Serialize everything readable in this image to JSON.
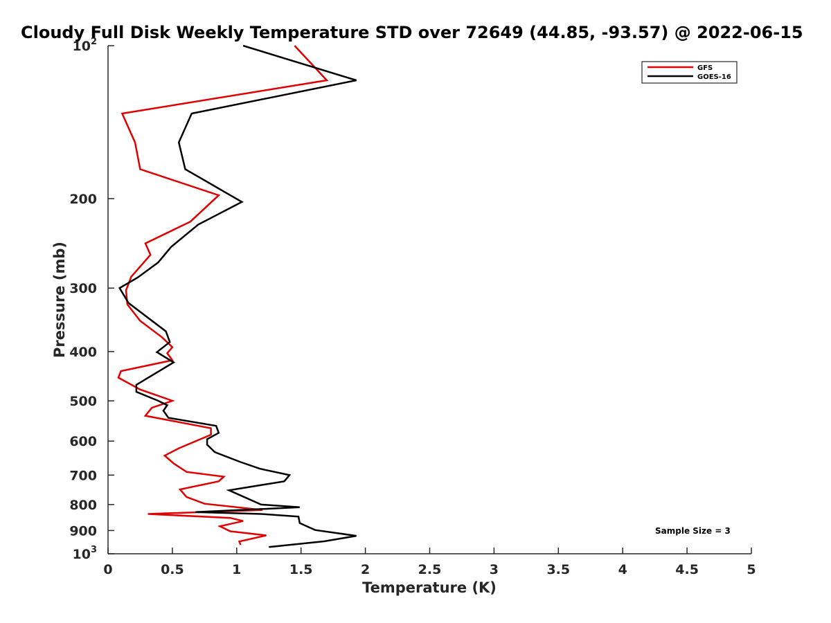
{
  "chart_data": {
    "type": "line",
    "title": "Cloudy Full Disk Weekly Temperature STD over 72649 (44.85, -93.57) @ 2022-06-15",
    "xlabel": "Temperature (K)",
    "ylabel": "Pressure (mb)",
    "xlim": [
      0,
      5
    ],
    "ylim": [
      100,
      1000
    ],
    "y_scale": "log",
    "y_reversed": true,
    "xticks": [
      0,
      0.5,
      1,
      1.5,
      2,
      2.5,
      3,
      3.5,
      4,
      4.5,
      5
    ],
    "xtick_labels": [
      "0",
      "0.5",
      "1",
      "1.5",
      "2",
      "2.5",
      "3",
      "3.5",
      "4",
      "4.5",
      "5"
    ],
    "yticks": [
      {
        "value": 100,
        "label": "10",
        "exp": "2"
      },
      {
        "value": 200,
        "label": "200",
        "exp": ""
      },
      {
        "value": 300,
        "label": "300",
        "exp": ""
      },
      {
        "value": 400,
        "label": "400",
        "exp": ""
      },
      {
        "value": 500,
        "label": "500",
        "exp": ""
      },
      {
        "value": 600,
        "label": "600",
        "exp": ""
      },
      {
        "value": 700,
        "label": "700",
        "exp": ""
      },
      {
        "value": 800,
        "label": "800",
        "exp": ""
      },
      {
        "value": 900,
        "label": "900",
        "exp": ""
      },
      {
        "value": 1000,
        "label": "10",
        "exp": "3"
      }
    ],
    "grid": false,
    "legend": {
      "position": "top-right"
    },
    "annotation": "Sample Size = 3",
    "series": [
      {
        "name": "GFS",
        "color": "#e00000",
        "points": [
          [
            1.45,
            100
          ],
          [
            1.7,
            117
          ],
          [
            0.11,
            136
          ],
          [
            0.21,
            155
          ],
          [
            0.25,
            175
          ],
          [
            0.86,
            197
          ],
          [
            0.64,
            222
          ],
          [
            0.29,
            245
          ],
          [
            0.33,
            258
          ],
          [
            0.18,
            285
          ],
          [
            0.14,
            303
          ],
          [
            0.15,
            323
          ],
          [
            0.25,
            348
          ],
          [
            0.42,
            375
          ],
          [
            0.5,
            392
          ],
          [
            0.46,
            403
          ],
          [
            0.5,
            416
          ],
          [
            0.1,
            437
          ],
          [
            0.08,
            450
          ],
          [
            0.25,
            475
          ],
          [
            0.5,
            500
          ],
          [
            0.34,
            516
          ],
          [
            0.29,
            535
          ],
          [
            0.8,
            566
          ],
          [
            0.8,
            583
          ],
          [
            0.55,
            620
          ],
          [
            0.44,
            641
          ],
          [
            0.51,
            664
          ],
          [
            0.61,
            690
          ],
          [
            0.9,
            705
          ],
          [
            0.86,
            720
          ],
          [
            0.56,
            747
          ],
          [
            0.61,
            773
          ],
          [
            0.75,
            797
          ],
          [
            1.2,
            820
          ],
          [
            0.31,
            835
          ],
          [
            0.95,
            850
          ],
          [
            1.05,
            862
          ],
          [
            0.87,
            883
          ],
          [
            0.95,
            903
          ],
          [
            1.23,
            920
          ],
          [
            1.02,
            946
          ],
          [
            1.03,
            960
          ]
        ]
      },
      {
        "name": "GOES-16",
        "color": "#000000",
        "points": [
          [
            1.05,
            100
          ],
          [
            1.93,
            117
          ],
          [
            0.65,
            136
          ],
          [
            0.55,
            155
          ],
          [
            0.6,
            175
          ],
          [
            1.04,
            203
          ],
          [
            0.7,
            225
          ],
          [
            0.49,
            249
          ],
          [
            0.39,
            267
          ],
          [
            0.23,
            286
          ],
          [
            0.09,
            300
          ],
          [
            0.16,
            321
          ],
          [
            0.45,
            365
          ],
          [
            0.48,
            383
          ],
          [
            0.38,
            401
          ],
          [
            0.51,
            420
          ],
          [
            0.22,
            465
          ],
          [
            0.22,
            480
          ],
          [
            0.39,
            500
          ],
          [
            0.46,
            510
          ],
          [
            0.43,
            523
          ],
          [
            0.47,
            540
          ],
          [
            0.84,
            560
          ],
          [
            0.86,
            578
          ],
          [
            0.77,
            595
          ],
          [
            0.77,
            610
          ],
          [
            0.83,
            631
          ],
          [
            1.03,
            660
          ],
          [
            1.18,
            680
          ],
          [
            1.41,
            700
          ],
          [
            1.37,
            720
          ],
          [
            0.94,
            750
          ],
          [
            1.19,
            800
          ],
          [
            1.49,
            810
          ],
          [
            0.68,
            828
          ],
          [
            1.19,
            835
          ],
          [
            1.48,
            845
          ],
          [
            1.49,
            870
          ],
          [
            1.61,
            898
          ],
          [
            1.93,
            922
          ],
          [
            1.68,
            945
          ],
          [
            1.25,
            970
          ]
        ]
      }
    ]
  }
}
